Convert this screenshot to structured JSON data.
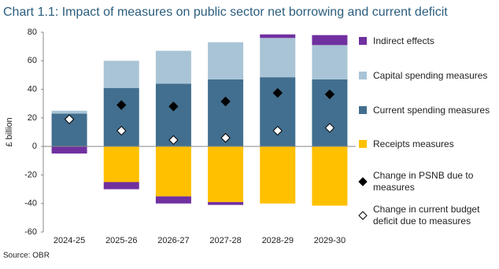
{
  "chart_data": {
    "type": "bar",
    "title": "Chart 1.1: Impact of measures on public sector net borrowing and current deficit",
    "y_label": "£ billion",
    "source": "Source: OBR",
    "categories": [
      "2024-25",
      "2025-26",
      "2026-27",
      "2027-28",
      "2028-29",
      "2029-30"
    ],
    "series": [
      {
        "name": "Indirect effects",
        "color": "#7030a0",
        "kind": "bar",
        "values": [
          -5,
          -5,
          -5,
          -2,
          2.5,
          7
        ]
      },
      {
        "name": "Capital spending measures",
        "color": "#a9c4d6",
        "kind": "bar",
        "values": [
          2,
          19,
          23,
          26,
          27.5,
          24
        ]
      },
      {
        "name": "Current spending measures",
        "color": "#426f8f",
        "kind": "bar",
        "values": [
          23,
          41,
          44,
          47,
          48.5,
          47
        ]
      },
      {
        "name": "Receipts measures",
        "color": "#ffc000",
        "kind": "bar",
        "values": [
          0,
          -25,
          -35,
          -39,
          -40,
          -41.5
        ]
      },
      {
        "name": "Change in PSNB due to measures",
        "color": "#000000",
        "kind": "diamond",
        "values": [
          19,
          29,
          28,
          31.5,
          37.5,
          36.5
        ]
      },
      {
        "name": "Change in current budget deficit due to measures",
        "color": "#ffffff",
        "kind": "diamond",
        "values": [
          19,
          11,
          4.5,
          6,
          11,
          13
        ]
      }
    ],
    "ylim": [
      -60,
      80
    ],
    "yticks": [
      -60,
      -40,
      -20,
      0,
      20,
      40,
      60,
      80
    ],
    "grid": false
  }
}
